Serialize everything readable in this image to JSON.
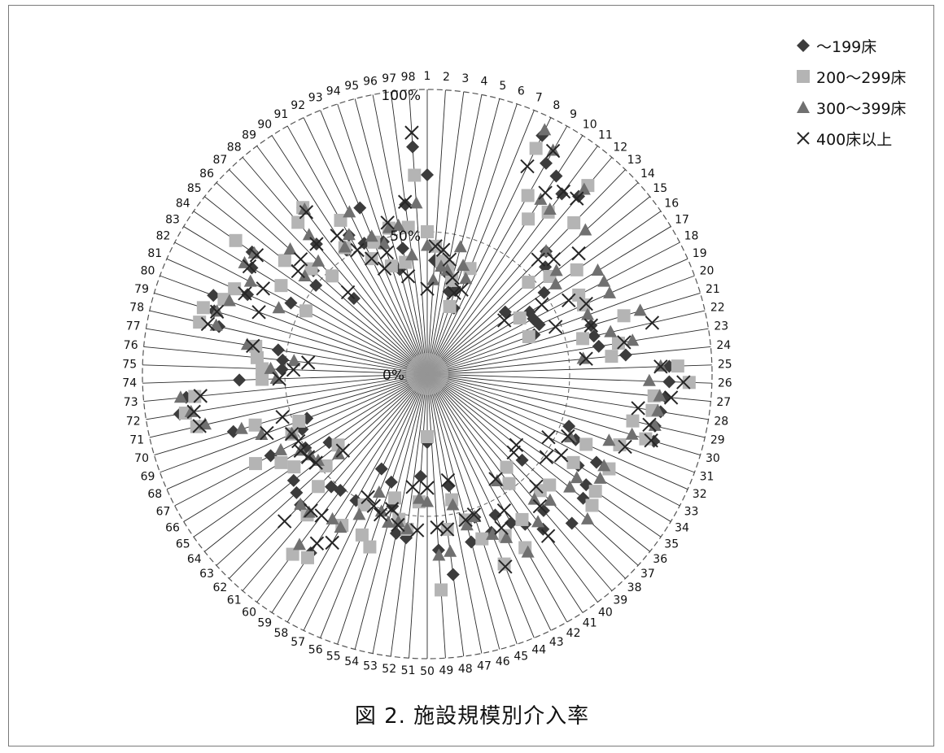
{
  "chart_data": {
    "type": "radar",
    "title": "",
    "caption": "図 2.  施設規模別介入率",
    "axis_count": 98,
    "axis_labels": [
      "1",
      "2",
      "3",
      "4",
      "5",
      "6",
      "7",
      "8",
      "9",
      "10",
      "11",
      "12",
      "13",
      "14",
      "15",
      "16",
      "17",
      "18",
      "19",
      "20",
      "21",
      "22",
      "23",
      "24",
      "25",
      "26",
      "27",
      "28",
      "29",
      "30",
      "31",
      "32",
      "33",
      "34",
      "35",
      "36",
      "37",
      "38",
      "39",
      "40",
      "41",
      "42",
      "43",
      "44",
      "45",
      "46",
      "47",
      "48",
      "49",
      "50",
      "51",
      "52",
      "53",
      "54",
      "55",
      "56",
      "57",
      "58",
      "59",
      "60",
      "61",
      "62",
      "63",
      "64",
      "65",
      "66",
      "67",
      "68",
      "69",
      "70",
      "71",
      "72",
      "73",
      "74",
      "75",
      "76",
      "77",
      "78",
      "79",
      "80",
      "81",
      "82",
      "83",
      "84",
      "85",
      "86",
      "87",
      "88",
      "89",
      "90",
      "91",
      "92",
      "93",
      "94",
      "95",
      "96",
      "97",
      "98"
    ],
    "radial_tick_labels": [
      "0%",
      "50%",
      "100%"
    ],
    "radial_range": [
      0,
      100
    ],
    "grid": true,
    "legend_position": "top-right",
    "series": [
      {
        "name": "～199床",
        "marker": "diamond",
        "color": "#3c3c3c",
        "values": [
          70,
          40,
          38,
          36,
          30,
          31,
          25,
          93,
          85,
          83,
          79,
          82,
          60,
          56,
          35,
          50,
          42,
          42,
          43,
          40,
          60,
          60,
          61,
          70,
          85,
          85,
          84,
          83,
          82,
          83,
          53,
          57,
          67,
          62,
          68,
          70,
          45,
          73,
          63,
          68,
          63,
          60,
          55,
          60,
          53,
          61,
          40,
          71,
          62,
          24,
          36,
          58,
          57,
          48,
          40,
          61,
          37,
          51,
          75,
          51,
          52,
          64,
          62,
          60,
          42,
          50,
          62,
          48,
          45,
          71,
          82,
          88,
          85,
          66,
          51,
          51,
          53,
          75,
          78,
          80,
          69,
          54,
          72,
          75,
          50,
          54,
          37,
          60,
          73,
          52,
          56,
          51,
          63,
          49,
          38,
          45,
          60,
          80
        ]
      },
      {
        "name": "200～299床",
        "marker": "square",
        "color": "#b4b4b4",
        "values": [
          50,
          45,
          40,
          38,
          34,
          25,
          40,
          88,
          72,
          65,
          71,
          87,
          74,
          48,
          55,
          64,
          38,
          60,
          60,
          38,
          72,
          56,
          68,
          65,
          88,
          92,
          80,
          80,
          74,
          80,
          72,
          61,
          72,
          60,
          72,
          74,
          58,
          57,
          43,
          48,
          61,
          70,
          63,
          72,
          61,
          53,
          45,
          55,
          76,
          22,
          45,
          55,
          52,
          45,
          64,
          61,
          51,
          61,
          77,
          79,
          65,
          55,
          48,
          40,
          57,
          60,
          68,
          52,
          48,
          63,
          83,
          86,
          82,
          58,
          58,
          60,
          61,
          82,
          82,
          76,
          74,
          48,
          60,
          82,
          64,
          55,
          48,
          70,
          73,
          53,
          62,
          45,
          50,
          40,
          53,
          40,
          52,
          70
        ]
      },
      {
        "name": "300～399床",
        "marker": "triangle",
        "color": "#707070",
        "values": [
          45,
          33,
          38,
          37,
          46,
          40,
          36,
          95,
          90,
          73,
          72,
          85,
          60,
          75,
          58,
          55,
          70,
          70,
          70,
          60,
          78,
          66,
          73,
          55,
          82,
          78,
          82,
          82,
          82,
          75,
          68,
          55,
          70,
          71,
          64,
          64,
          76,
          62,
          58,
          65,
          45,
          72,
          64,
          61,
          53,
          55,
          47,
          63,
          64,
          45,
          44,
          55,
          53,
          54,
          51,
          45,
          55,
          62,
          61,
          75,
          64,
          64,
          42,
          49,
          50,
          52,
          58,
          52,
          62,
          68,
          80,
          84,
          87,
          53,
          55,
          47,
          64,
          76,
          77,
          74,
          57,
          70,
          75,
          74,
          55,
          65,
          55,
          64,
          72,
          53,
          56,
          63,
          52,
          48,
          53,
          53,
          42,
          60
        ]
      },
      {
        "name": "400床以上",
        "marker": "cross",
        "color": "#262626",
        "values": [
          30,
          45,
          44,
          41,
          35,
          30,
          32,
          81,
          90,
          76,
          80,
          81,
          56,
          60,
          68,
          33,
          47,
          56,
          61,
          48,
          60,
          81,
          70,
          56,
          82,
          90,
          86,
          75,
          80,
          82,
          74,
          54,
          48,
          55,
          51,
          40,
          41,
          55,
          61,
          71,
          44,
          55,
          60,
          73,
          52,
          53,
          38,
          55,
          54,
          40,
          55,
          40,
          54,
          49,
          52,
          50,
          48,
          68,
          71,
          62,
          63,
          72,
          40,
          50,
          51,
          52,
          51,
          52,
          60,
          53,
          82,
          83,
          80,
          52,
          47,
          42,
          62,
          79,
          77,
          63,
          70,
          65,
          73,
          73,
          58,
          60,
          40,
          60,
          71,
          58,
          50,
          45,
          40,
          45,
          55,
          35,
          61,
          85
        ]
      }
    ]
  }
}
